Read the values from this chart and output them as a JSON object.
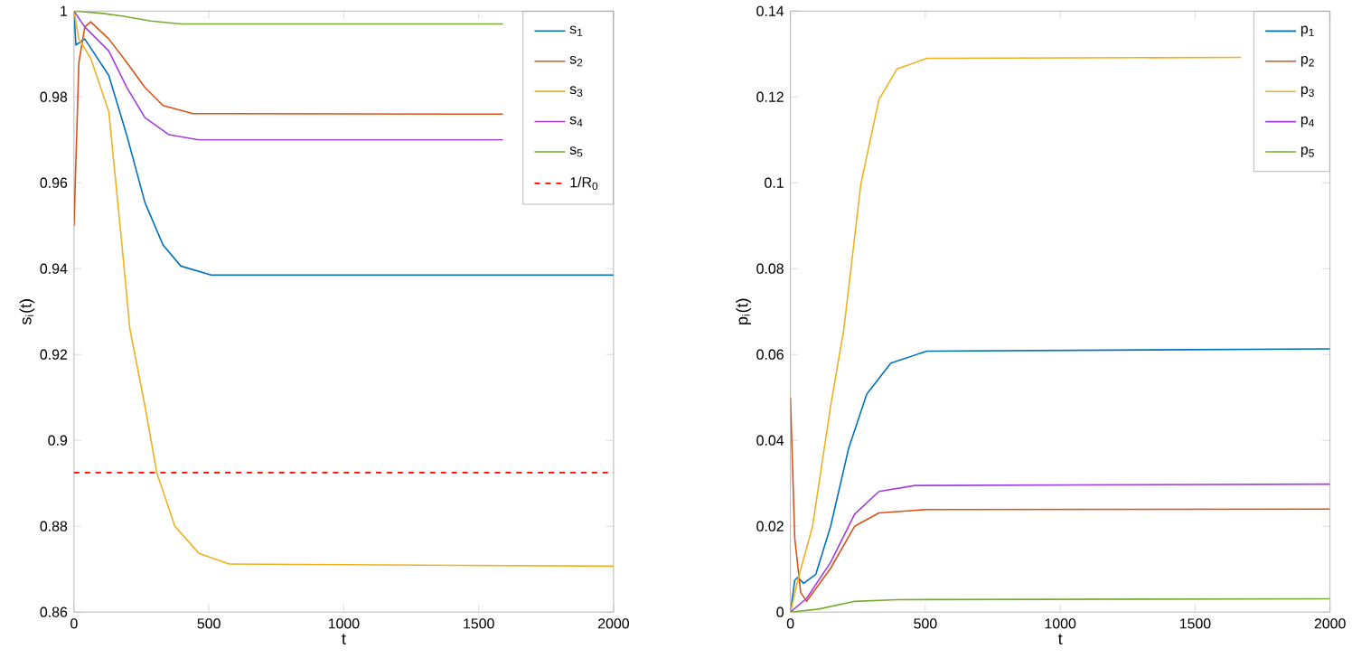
{
  "chart_data": [
    {
      "type": "line",
      "xlabel": "t",
      "ylabel": "s$_{i}$(t)",
      "xlim": [
        0,
        2000
      ],
      "xticks": [
        0,
        500,
        1000,
        1500,
        2000
      ],
      "ylim": [
        0.86,
        1
      ],
      "yticks": [
        0.86,
        0.88,
        0.9,
        0.92,
        0.94,
        0.96,
        0.98,
        1
      ],
      "legend": "top right",
      "series": [
        {
          "name": "s$_{1}$",
          "color": "#0072bd",
          "x": [
            0,
            7,
            40,
            129,
            196,
            263,
            330,
            396,
            508,
            2000
          ],
          "values": [
            1,
            0.9921,
            0.9935,
            0.985,
            0.971,
            0.9554,
            0.9455,
            0.9406,
            0.9385,
            0.9385
          ]
        },
        {
          "name": "s$_{2}$",
          "color": "#d95319",
          "x": [
            0,
            18,
            40,
            62,
            129,
            196,
            263,
            330,
            441,
            1590
          ],
          "values": [
            0.95,
            0.988,
            0.9963,
            0.9975,
            0.9935,
            0.988,
            0.9822,
            0.978,
            0.9761,
            0.976
          ]
        },
        {
          "name": "s$_{3}$",
          "color": "#edb120",
          "x": [
            0,
            18,
            62,
            129,
            174,
            207,
            263,
            307,
            374,
            463,
            575,
            2000
          ],
          "values": [
            1,
            0.9935,
            0.989,
            0.9766,
            0.948,
            0.926,
            0.908,
            0.8924,
            0.88,
            0.8737,
            0.8712,
            0.8707
          ]
        },
        {
          "name": "s$_{4}$",
          "color": "#a03ee0",
          "x": [
            0,
            40,
            129,
            196,
            263,
            352,
            463,
            1590
          ],
          "values": [
            1,
            0.9963,
            0.9907,
            0.9822,
            0.9752,
            0.9712,
            0.97,
            0.97
          ]
        },
        {
          "name": "s$_{5}$",
          "color": "#77ac30",
          "x": [
            0,
            100,
            174,
            285,
            396,
            1590
          ],
          "values": [
            1,
            0.9995,
            0.9989,
            0.9977,
            0.997,
            0.997
          ]
        }
      ],
      "ref_lines": [
        {
          "axis": "y",
          "value": 0.8925,
          "label": "1/R$_{0}$",
          "color": "#ff0000",
          "line_style": "dashed"
        }
      ]
    },
    {
      "type": "line",
      "xlabel": "t",
      "ylabel": "p$_{i}$(t)",
      "xlim": [
        0,
        2000
      ],
      "xticks": [
        0,
        500,
        1000,
        1500,
        2000
      ],
      "ylim": [
        0,
        0.14
      ],
      "yticks": [
        0,
        0.02,
        0.04,
        0.06,
        0.08,
        0.1,
        0.12,
        0.14
      ],
      "legend": "top right",
      "series": [
        {
          "name": "p$_{1}$",
          "color": "#0072bd",
          "x": [
            0,
            16,
            27,
            49,
            94,
            149,
            216,
            283,
            372,
            506,
            2000
          ],
          "values": [
            0,
            0.0074,
            0.0081,
            0.0067,
            0.0088,
            0.02,
            0.0382,
            0.0508,
            0.058,
            0.0608,
            0.0613
          ]
        },
        {
          "name": "p$_{2}$",
          "color": "#d95319",
          "x": [
            0,
            16,
            38,
            60,
            149,
            238,
            328,
            506,
            2000
          ],
          "values": [
            0.05,
            0.0172,
            0.0046,
            0.0025,
            0.0102,
            0.02,
            0.0231,
            0.0239,
            0.024
          ]
        },
        {
          "name": "p$_{3}$",
          "color": "#edb120",
          "x": [
            0,
            27,
            82,
            149,
            198,
            261,
            328,
            395,
            506,
            1670
          ],
          "values": [
            0,
            0.0074,
            0.02,
            0.048,
            0.0659,
            0.0997,
            0.1194,
            0.1265,
            0.129,
            0.1292
          ]
        },
        {
          "name": "p$_{4}$",
          "color": "#a03ee0",
          "x": [
            0,
            60,
            149,
            238,
            328,
            462,
            2000
          ],
          "values": [
            0,
            0.0032,
            0.0116,
            0.0228,
            0.0281,
            0.0295,
            0.0298
          ]
        },
        {
          "name": "p$_{5}$",
          "color": "#77ac30",
          "x": [
            0,
            105,
            238,
            395,
            2000
          ],
          "values": [
            0,
            0.0007,
            0.0025,
            0.0029,
            0.0031
          ]
        }
      ]
    }
  ]
}
